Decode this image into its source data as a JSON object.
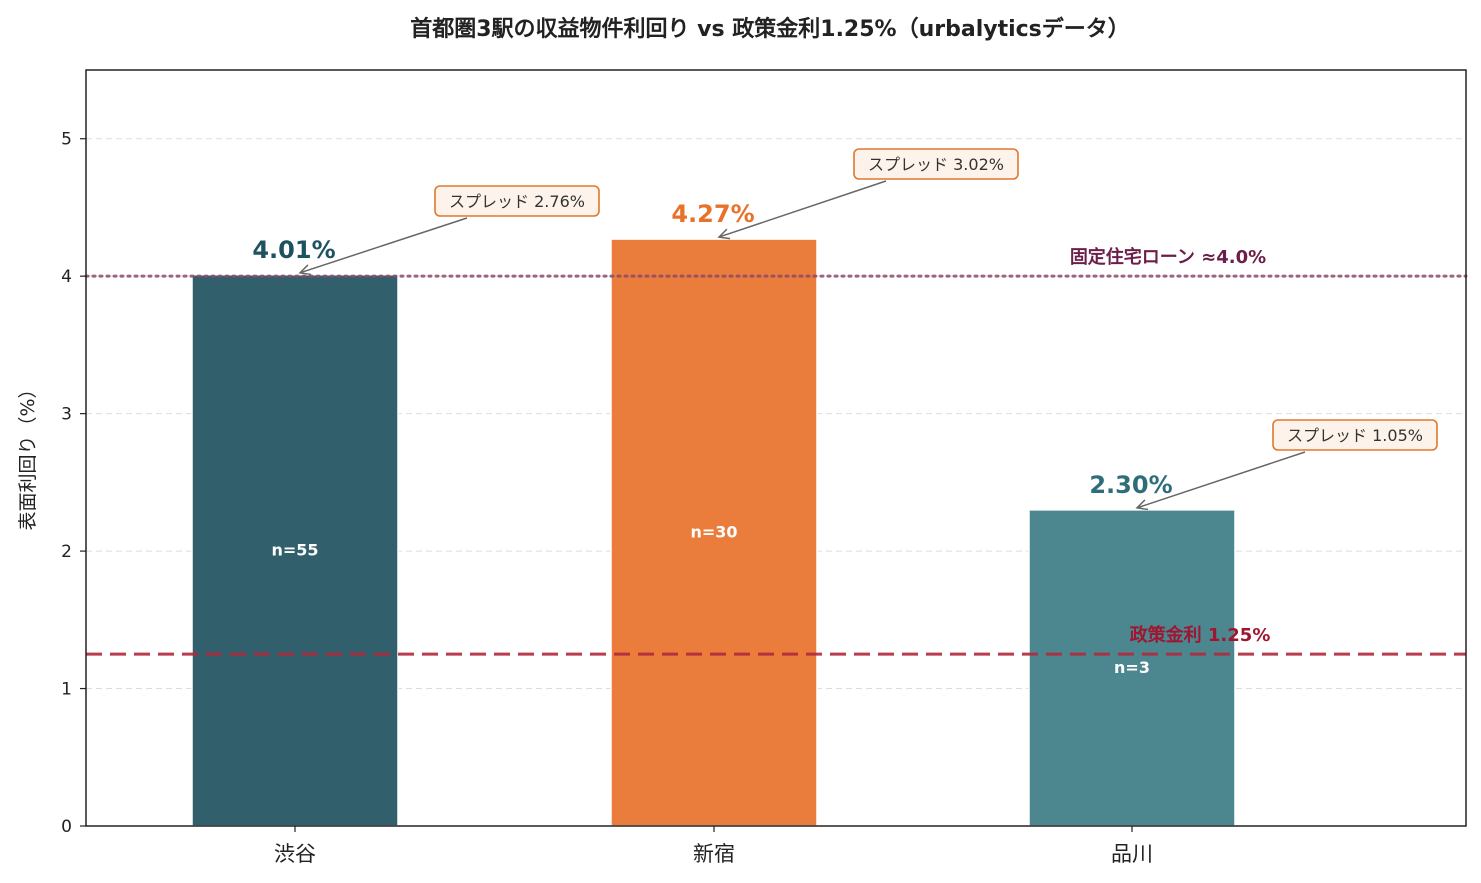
{
  "chart_data": {
    "type": "bar",
    "title": "首都圏3駅の収益物件利回り vs 政策金利1.25%（urbalyticsデータ）",
    "xlabel": "",
    "ylabel": "表面利回り（%）",
    "ylim": [
      0,
      5.5
    ],
    "yticks": [
      0,
      1,
      2,
      3,
      4,
      5
    ],
    "grid": "horizontal-dashed",
    "categories": [
      "渋谷",
      "新宿",
      "品川"
    ],
    "values": [
      4.01,
      4.27,
      2.3
    ],
    "value_labels": [
      "4.01%",
      "4.27%",
      "2.30%"
    ],
    "sample_labels": [
      "n=55",
      "n=30",
      "n=3"
    ],
    "spread_labels": [
      "スプレッド 2.76%",
      "スプレッド 3.02%",
      "スプレッド 1.05%"
    ],
    "bar_colors": [
      "#1f5260",
      "#e8722a",
      "#3d7d87"
    ],
    "value_label_colors": [
      "#1f5260",
      "#e8722a",
      "#2e6e7a"
    ],
    "reference_lines": [
      {
        "label": "固定住宅ローン ≈4.0%",
        "value": 4.0,
        "style": "dotted",
        "color": "#8b4a6b",
        "label_color": "#6b1e4a"
      },
      {
        "label": "政策金利 1.25%",
        "value": 1.25,
        "style": "dashed",
        "color": "#b0293c",
        "label_color": "#a01530"
      }
    ]
  }
}
